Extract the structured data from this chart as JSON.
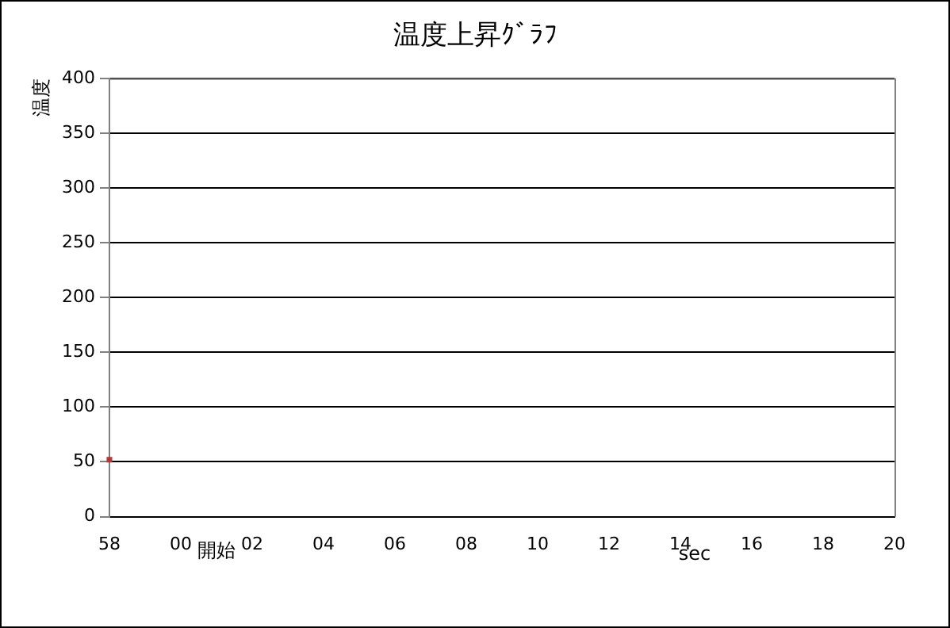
{
  "chart_data": {
    "type": "scatter",
    "title": "温度上昇ｸﾞﾗﾌ",
    "xlabel": "sec",
    "ylabel": "温度",
    "annotations": [
      "開始"
    ],
    "categories": [
      "58",
      "00",
      "02",
      "04",
      "06",
      "08",
      "10",
      "12",
      "14",
      "16",
      "18",
      "20"
    ],
    "series": [
      {
        "color": "#b03a3a",
        "x": [
          "58"
        ],
        "values": [
          52
        ]
      }
    ],
    "ylim": [
      0,
      400
    ],
    "yticks": [
      0,
      50,
      100,
      150,
      200,
      250,
      300,
      350,
      400
    ],
    "grid": "y",
    "legend": false,
    "marker": "square"
  }
}
